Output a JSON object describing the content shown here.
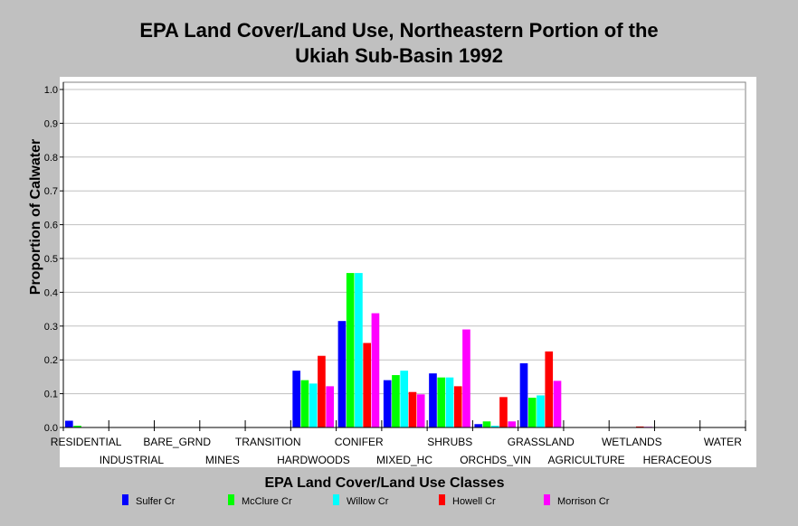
{
  "title": {
    "line1": "EPA Land Cover/Land Use, Northeastern Portion of the",
    "line2": "Ukiah Sub-Basin 1992"
  },
  "chart_data": {
    "type": "bar",
    "title": "EPA Land Cover/Land Use, Northeastern Portion of the Ukiah Sub-Basin 1992",
    "xlabel": "EPA Land Cover/Land Use Classes",
    "ylabel": "Proportion of Calwater",
    "ylim": [
      0,
      1.0
    ],
    "yticks": [
      "0.0",
      "0.1",
      "0.2",
      "0.3",
      "0.4",
      "0.5",
      "0.6",
      "0.7",
      "0.8",
      "0.9",
      "1.0"
    ],
    "grid": true,
    "legend_position": "bottom",
    "categories": [
      "RESIDENTIAL",
      "INDUSTRIAL",
      "BARE_GRND",
      "MINES",
      "TRANSITION",
      "HARDWOODS",
      "CONIFER",
      "MIXED_HC",
      "SHRUBS",
      "ORCHDS_VIN",
      "GRASSLAND",
      "AGRICULTURE",
      "WETLANDS",
      "HERACEOUS",
      "WATER"
    ],
    "series": [
      {
        "name": "Sulfer Cr",
        "color": "#0000ff",
        "values": [
          0.02,
          0,
          0,
          0,
          0,
          0.168,
          0.315,
          0.14,
          0.16,
          0.01,
          0.19,
          0,
          0,
          0,
          0
        ]
      },
      {
        "name": "McClure Cr",
        "color": "#00ff00",
        "values": [
          0.005,
          0,
          0,
          0,
          0,
          0.14,
          0.457,
          0.155,
          0.148,
          0.018,
          0.088,
          0,
          0,
          0,
          0
        ]
      },
      {
        "name": "Willow Cr",
        "color": "#00ffff",
        "values": [
          0,
          0,
          0,
          0,
          0,
          0.13,
          0.457,
          0.168,
          0.148,
          0.005,
          0.095,
          0,
          0,
          0,
          0
        ]
      },
      {
        "name": "Howell Cr",
        "color": "#ff0000",
        "values": [
          0,
          0,
          0,
          0,
          0,
          0.212,
          0.25,
          0.105,
          0.122,
          0.09,
          0.225,
          0,
          0.003,
          0,
          0
        ]
      },
      {
        "name": "Morrison Cr",
        "color": "#ff00ff",
        "values": [
          0,
          0,
          0,
          0,
          0,
          0.122,
          0.338,
          0.098,
          0.29,
          0.018,
          0.138,
          0,
          0.002,
          0,
          0
        ]
      }
    ]
  },
  "colors": {
    "page_background": "#c0c0c0",
    "plot_background": "#ffffff",
    "grid": "#c0c0c0"
  }
}
